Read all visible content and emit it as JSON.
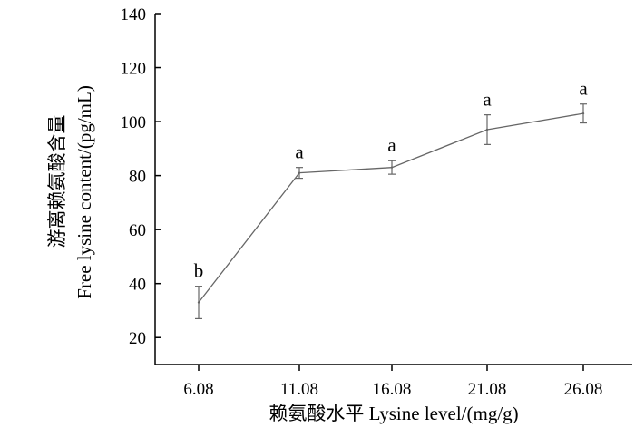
{
  "chart_data": {
    "type": "line",
    "title": "",
    "xlabel": "赖氨酸水平  Lysine level/(mg/g)",
    "ylabel": "游离赖氨酸含量",
    "ylabel_line2": "Free lysine content/(pg/mL)",
    "categories": [
      "6.08",
      "11.08",
      "16.08",
      "21.08",
      "26.08"
    ],
    "series": [
      {
        "values": [
          33,
          81,
          83,
          97,
          103
        ],
        "errors": [
          6,
          2,
          2.5,
          5.5,
          3.5
        ],
        "significance": [
          "b",
          "a",
          "a",
          "a",
          "a"
        ]
      }
    ],
    "ylim": [
      10,
      140
    ],
    "yticks": [
      20,
      40,
      60,
      80,
      100,
      120,
      140
    ],
    "grid": false,
    "colors": {
      "line": "#666666",
      "axis": "#000000",
      "text": "#000000"
    }
  }
}
